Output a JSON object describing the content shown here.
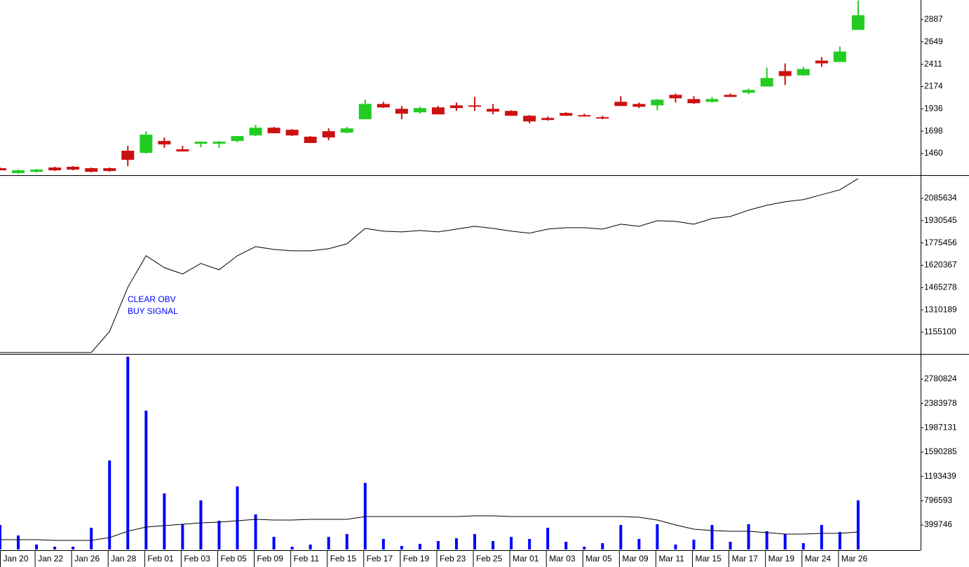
{
  "chart_data": [
    {
      "type": "candlestick",
      "open": [
        1304,
        1252,
        1266,
        1311,
        1319,
        1304,
        1304,
        1490,
        1467,
        1594,
        1505,
        1564,
        1564,
        1594,
        1653,
        1735,
        1713,
        1639,
        1698,
        1683,
        1825,
        1988,
        1936,
        1899,
        1951,
        1973,
        1973,
        1936,
        1914,
        1862,
        1839,
        1892,
        1869,
        1847,
        2011,
        1988,
        1973,
        2085,
        2040,
        2011,
        2085,
        2107,
        2174,
        2338,
        2293,
        2450,
        2435,
        2777
      ],
      "high": [
        1311,
        1289,
        1296,
        1319,
        1326,
        1311,
        1311,
        1542,
        1698,
        1631,
        1542,
        1586,
        1594,
        1646,
        1765,
        1743,
        1720,
        1646,
        1728,
        1743,
        2033,
        2011,
        1966,
        1958,
        1966,
        2003,
        2063,
        1988,
        1921,
        1869,
        1854,
        1899,
        1884,
        1862,
        2070,
        2003,
        2040,
        2100,
        2070,
        2063,
        2100,
        2152,
        2375,
        2420,
        2383,
        2487,
        2598,
        3089
      ],
      "low": [
        1281,
        1244,
        1259,
        1274,
        1281,
        1259,
        1266,
        1326,
        1460,
        1520,
        1482,
        1527,
        1520,
        1579,
        1646,
        1676,
        1646,
        1572,
        1601,
        1676,
        1825,
        1944,
        1825,
        1884,
        1877,
        1914,
        1914,
        1877,
        1862,
        1780,
        1810,
        1862,
        1854,
        1825,
        1966,
        1944,
        1921,
        2003,
        1988,
        2003,
        2063,
        2092,
        2174,
        2189,
        2286,
        2383,
        2435,
        2777
      ],
      "close": [
        1281,
        1281,
        1289,
        1281,
        1289,
        1266,
        1274,
        1393,
        1661,
        1557,
        1482,
        1586,
        1586,
        1646,
        1735,
        1676,
        1653,
        1572,
        1631,
        1728,
        1988,
        1951,
        1884,
        1944,
        1877,
        1944,
        1958,
        1906,
        1862,
        1802,
        1817,
        1862,
        1854,
        1832,
        1966,
        1958,
        2033,
        2048,
        1996,
        2040,
        2063,
        2137,
        2264,
        2286,
        2360,
        2420,
        2546,
        2933
      ],
      "up_color": "#22cc22",
      "down_color": "#cc1111",
      "ylim": [
        1229,
        3095
      ],
      "yticks": [
        1460,
        1698,
        1936,
        2174,
        2411,
        2649,
        2887
      ]
    },
    {
      "type": "line",
      "values": [
        1013667,
        1013667,
        1013667,
        1013667,
        1013667,
        1013667,
        1159977,
        1467228,
        1686693,
        1603784,
        1559891,
        1633046,
        1589153,
        1686693,
        1750094,
        1730586,
        1720832,
        1720832,
        1735463,
        1769602,
        1876896,
        1857388,
        1852511,
        1862265,
        1852511,
        1872019,
        1891527,
        1876896,
        1857388,
        1843657,
        1872019,
        1881773,
        1881773,
        1872019,
        1906158,
        1891527,
        1930543,
        1925666,
        1906158,
        1945174,
        1959805,
        2003698,
        2037837,
        2062222,
        2076853,
        2110992,
        2145131,
        2223163
      ],
      "color": "#000000",
      "annotation": [
        "CLEAR OBV",
        "BUY SIGNAL"
      ],
      "annotation_color": "#0000ff",
      "ylim": [
        1003913,
        2246575
      ],
      "yticks": [
        1155100,
        1310189,
        1465278,
        1620367,
        1775456,
        1930545,
        2085634
      ]
    },
    {
      "type": "bar",
      "categories": [
        "Jan 20",
        null,
        "Jan 22",
        null,
        "Jan 26",
        null,
        "Jan 28",
        null,
        "Feb 01",
        null,
        "Feb 03",
        null,
        "Feb 05",
        null,
        "Feb 09",
        null,
        "Feb 11",
        null,
        "Feb 15",
        null,
        "Feb 17",
        null,
        "Feb 19",
        null,
        "Feb 23",
        null,
        "Feb 25",
        null,
        "Mar 01",
        null,
        "Mar 03",
        null,
        "Mar 05",
        null,
        "Mar 09",
        null,
        "Mar 11",
        null,
        "Mar 15",
        null,
        "Mar 17",
        null,
        "Mar 19",
        null,
        "Mar 24",
        null,
        "Mar 26",
        null
      ],
      "values": [
        400610,
        228920,
        80122,
        45784,
        45784,
        354826,
        1453642,
        3147650,
        2266308,
        915680,
        412056,
        801220,
        469286,
        1030140,
        572300,
        206028,
        45784,
        80122,
        206028,
        251812,
        1087370,
        171690,
        57230,
        91568,
        137352,
        183136,
        251812,
        137352,
        206028,
        171690,
        354826,
        125906,
        45784,
        103014,
        400610,
        171690,
        412056,
        80122,
        160244,
        400610,
        125906,
        412056,
        297596,
        251812,
        103014,
        400610,
        286150,
        801220
      ],
      "color": "#0000ff",
      "line_values": [
        160244,
        160244,
        160244,
        148798,
        148798,
        148798,
        194582,
        297596,
        366272,
        389164,
        412056,
        434948,
        446394,
        469286,
        492178,
        480732,
        480732,
        492178,
        492178,
        492178,
        537962,
        537962,
        537962,
        537962,
        537962,
        537962,
        549408,
        549408,
        537962,
        537962,
        537962,
        537962,
        537962,
        537962,
        537962,
        526516,
        480732,
        400610,
        331934,
        309042,
        297596,
        297596,
        274704,
        251812,
        251812,
        263258,
        263258,
        286150
      ],
      "line_color": "#000000",
      "ylim": [
        0,
        3192880
      ],
      "yticks": [
        399746,
        796593,
        1193439,
        1590285,
        1987131,
        2383978,
        2780824
      ]
    }
  ]
}
